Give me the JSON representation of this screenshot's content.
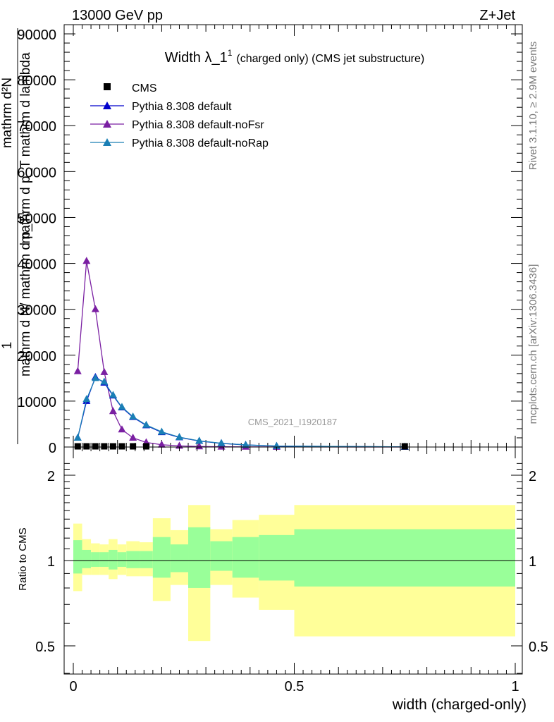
{
  "header": {
    "left": "13000 GeV pp",
    "right": "Z+Jet"
  },
  "side_labels": {
    "rivet": "Rivet 3.1.10, ≥ 2.9M events",
    "mcplots": "mcplots.cern.ch [arXiv:1306.3436]"
  },
  "watermark": "CMS_2021_I1920187",
  "chart_data": [
    {
      "type": "line",
      "title": "Width λ_1",
      "title_sup": "1",
      "subtitle": "(charged only) (CMS jet substructure)",
      "ylabel_lines": [
        "1",
        "mathrm d N/ mathrm d p_T",
        "mathrm d p_T mathrm d lambda",
        "mathrm d²N",
        "N"
      ],
      "xlim": [
        -0.02,
        1.0
      ],
      "ylim": [
        0,
        92000
      ],
      "yticks": [
        0,
        10000,
        20000,
        30000,
        40000,
        50000,
        60000,
        70000,
        80000,
        90000
      ],
      "ytick_labels": [
        "0",
        "10000",
        "20000",
        "30000",
        "40000",
        "50000",
        "60000",
        "70000",
        "80000",
        "90000"
      ],
      "legend_position": "top-left",
      "legend": [
        {
          "name": "CMS",
          "marker": "square",
          "color": "#000000"
        },
        {
          "name": "Pythia 8.308 default",
          "marker": "triangle",
          "color": "#0000cc"
        },
        {
          "name": "Pythia 8.308 default-noFsr",
          "marker": "triangle",
          "color": "#7a1fa2"
        },
        {
          "name": "Pythia 8.308 default-noRap",
          "marker": "triangle",
          "color": "#1a7fb5"
        }
      ],
      "series": [
        {
          "name": "CMS",
          "marker": "square",
          "color": "#000000",
          "points": [
            [
              0.01,
              150
            ],
            [
              0.03,
              150
            ],
            [
              0.05,
              150
            ],
            [
              0.07,
              150
            ],
            [
              0.09,
              150
            ],
            [
              0.11,
              150
            ],
            [
              0.135,
              150
            ],
            [
              0.165,
              150
            ],
            [
              0.75,
              150
            ]
          ]
        },
        {
          "name": "Pythia 8.308 default",
          "marker": "triangle",
          "color": "#0000cc",
          "points": [
            [
              0.01,
              2000
            ],
            [
              0.03,
              10000
            ],
            [
              0.05,
              15200
            ],
            [
              0.07,
              14000
            ],
            [
              0.09,
              11200
            ],
            [
              0.11,
              8600
            ],
            [
              0.135,
              6500
            ],
            [
              0.165,
              4700
            ],
            [
              0.2,
              3200
            ],
            [
              0.24,
              2100
            ],
            [
              0.285,
              1300
            ],
            [
              0.335,
              800
            ],
            [
              0.39,
              450
            ],
            [
              0.46,
              200
            ],
            [
              0.75,
              30
            ]
          ]
        },
        {
          "name": "Pythia 8.308 default-noFsr",
          "marker": "triangle",
          "color": "#7a1fa2",
          "points": [
            [
              0.01,
              16500
            ],
            [
              0.03,
              40500
            ],
            [
              0.05,
              30000
            ],
            [
              0.07,
              16300
            ],
            [
              0.09,
              7800
            ],
            [
              0.11,
              3800
            ],
            [
              0.135,
              2000
            ],
            [
              0.165,
              1000
            ],
            [
              0.2,
              500
            ],
            [
              0.24,
              250
            ],
            [
              0.285,
              120
            ],
            [
              0.335,
              60
            ],
            [
              0.39,
              30
            ],
            [
              0.46,
              15
            ],
            [
              0.75,
              5
            ]
          ]
        },
        {
          "name": "Pythia 8.308 default-noRap",
          "marker": "triangle",
          "color": "#1a7fb5",
          "points": [
            [
              0.01,
              2000
            ],
            [
              0.03,
              10400
            ],
            [
              0.05,
              15000
            ],
            [
              0.07,
              14200
            ],
            [
              0.09,
              11300
            ],
            [
              0.11,
              8700
            ],
            [
              0.135,
              6600
            ],
            [
              0.165,
              4800
            ],
            [
              0.2,
              3300
            ],
            [
              0.24,
              2150
            ],
            [
              0.285,
              1350
            ],
            [
              0.335,
              820
            ],
            [
              0.39,
              460
            ],
            [
              0.46,
              210
            ],
            [
              0.75,
              35
            ]
          ]
        }
      ]
    },
    {
      "type": "area",
      "ylabel": "Ratio to CMS",
      "xlabel": "width (charged-only)",
      "xlim": [
        -0.02,
        1.0
      ],
      "ylim": [
        0.35,
        2.3
      ],
      "yticks": [
        0.5,
        1,
        2
      ],
      "ytick_labels": [
        "0.5",
        "1",
        "2"
      ],
      "xticks": [
        0,
        0.5,
        1
      ],
      "xtick_labels": [
        "0",
        "0.5",
        "1"
      ],
      "reference_line": 1,
      "bands": [
        {
          "x0": 0.0,
          "x1": 0.02,
          "green": [
            0.9,
            1.18
          ],
          "yellow": [
            0.78,
            1.35
          ]
        },
        {
          "x0": 0.02,
          "x1": 0.04,
          "green": [
            0.94,
            1.09
          ],
          "yellow": [
            0.89,
            1.19
          ]
        },
        {
          "x0": 0.04,
          "x1": 0.06,
          "green": [
            0.95,
            1.07
          ],
          "yellow": [
            0.89,
            1.15
          ]
        },
        {
          "x0": 0.06,
          "x1": 0.08,
          "green": [
            0.95,
            1.07
          ],
          "yellow": [
            0.89,
            1.14
          ]
        },
        {
          "x0": 0.08,
          "x1": 0.1,
          "green": [
            0.93,
            1.09
          ],
          "yellow": [
            0.86,
            1.19
          ]
        },
        {
          "x0": 0.1,
          "x1": 0.12,
          "green": [
            0.95,
            1.07
          ],
          "yellow": [
            0.89,
            1.14
          ]
        },
        {
          "x0": 0.12,
          "x1": 0.15,
          "green": [
            0.94,
            1.08
          ],
          "yellow": [
            0.88,
            1.17
          ]
        },
        {
          "x0": 0.15,
          "x1": 0.18,
          "green": [
            0.94,
            1.08
          ],
          "yellow": [
            0.88,
            1.16
          ]
        },
        {
          "x0": 0.18,
          "x1": 0.22,
          "green": [
            0.87,
            1.21
          ],
          "yellow": [
            0.72,
            1.41
          ]
        },
        {
          "x0": 0.22,
          "x1": 0.26,
          "green": [
            0.91,
            1.14
          ],
          "yellow": [
            0.82,
            1.28
          ]
        },
        {
          "x0": 0.26,
          "x1": 0.31,
          "green": [
            0.8,
            1.31
          ],
          "yellow": [
            0.52,
            1.57
          ]
        },
        {
          "x0": 0.31,
          "x1": 0.36,
          "green": [
            0.92,
            1.17
          ],
          "yellow": [
            0.82,
            1.29
          ]
        },
        {
          "x0": 0.36,
          "x1": 0.42,
          "green": [
            0.87,
            1.21
          ],
          "yellow": [
            0.74,
            1.39
          ]
        },
        {
          "x0": 0.42,
          "x1": 0.5,
          "green": [
            0.85,
            1.23
          ],
          "yellow": [
            0.67,
            1.45
          ]
        },
        {
          "x0": 0.5,
          "x1": 1.0,
          "green": [
            0.81,
            1.29
          ],
          "yellow": [
            0.54,
            1.57
          ]
        }
      ]
    }
  ]
}
